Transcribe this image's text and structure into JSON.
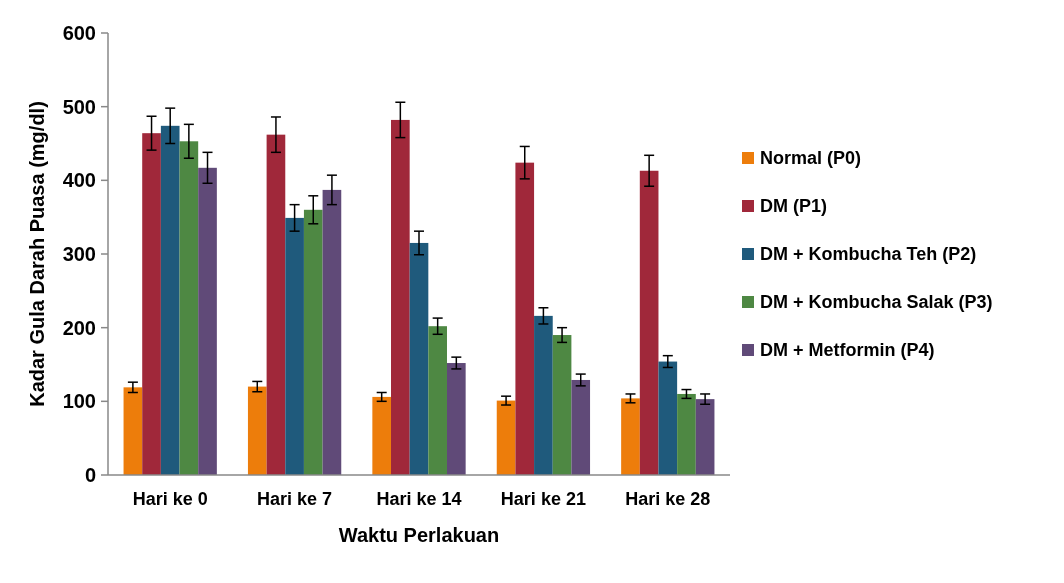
{
  "chart_data": {
    "type": "bar",
    "xlabel": "Waktu Perlakuan",
    "ylabel": "Kadar Gula Darah Puasa (mg/dl)",
    "categories": [
      "Hari ke 0",
      "Hari ke 7",
      "Hari ke 14",
      "Hari ke 21",
      "Hari ke 28"
    ],
    "series": [
      {
        "name": "Normal (P0)",
        "color": "#ed7d0b",
        "values": [
          119,
          120,
          106,
          101,
          104
        ],
        "errors": [
          7,
          7,
          6,
          6,
          6
        ]
      },
      {
        "name": "DM (P1)",
        "color": "#a0283a",
        "values": [
          464,
          462,
          482,
          424,
          413
        ],
        "errors": [
          23,
          24,
          24,
          22,
          21
        ]
      },
      {
        "name": "DM + Kombucha Teh (P2)",
        "color": "#1f5a7c",
        "values": [
          474,
          349,
          315,
          216,
          154
        ],
        "errors": [
          24,
          18,
          16,
          11,
          8
        ]
      },
      {
        "name": "DM + Kombucha Salak (P3)",
        "color": "#4e8843",
        "values": [
          453,
          360,
          202,
          190,
          110
        ],
        "errors": [
          23,
          19,
          11,
          10,
          6
        ]
      },
      {
        "name": "DM + Metformin (P4)",
        "color": "#604a78",
        "values": [
          417,
          387,
          152,
          129,
          103
        ],
        "errors": [
          21,
          20,
          8,
          8,
          7
        ]
      }
    ],
    "ylim": [
      0,
      600
    ],
    "yticks": [
      0,
      100,
      200,
      300,
      400,
      500,
      600
    ],
    "grid": false,
    "legend": "right"
  }
}
